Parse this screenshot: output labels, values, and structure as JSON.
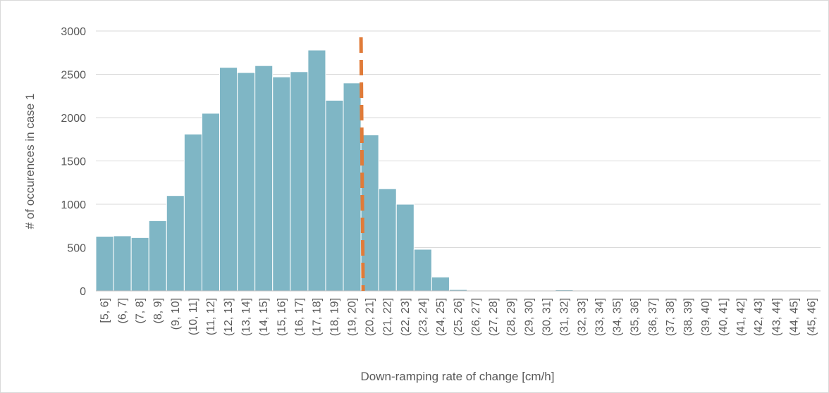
{
  "chart_data": {
    "type": "bar",
    "title": "",
    "xlabel": "Down-ramping rate of change [cm/h]",
    "ylabel": "# of occurences in case 1",
    "ylim": [
      0,
      3000
    ],
    "yticks": [
      0,
      500,
      1000,
      1500,
      2000,
      2500,
      3000
    ],
    "grid": "horizontal",
    "legend": "none",
    "categories": [
      "[5, 6]",
      "(6, 7]",
      "(7, 8]",
      "(8, 9]",
      "(9, 10]",
      "(10, 11]",
      "(11, 12]",
      "(12, 13]",
      "(13, 14]",
      "(14, 15]",
      "(15, 16]",
      "(16, 17]",
      "(17, 18]",
      "(18, 19]",
      "(19, 20]",
      "(20, 21]",
      "(21, 22]",
      "(22, 23]",
      "(23, 24]",
      "(24, 25]",
      "(25, 26]",
      "(26, 27]",
      "(27, 28]",
      "(28, 29]",
      "(29, 30]",
      "(30, 31]",
      "(31, 32]",
      "(32, 33]",
      "(33, 34]",
      "(34, 35]",
      "(35, 36]",
      "(36, 37]",
      "(37, 38]",
      "(38, 39]",
      "(39, 40]",
      "(40, 41]",
      "(41, 42]",
      "(42, 43]",
      "(43, 44]",
      "(44, 45]",
      "(45, 46]"
    ],
    "values": [
      630,
      635,
      615,
      810,
      1100,
      1810,
      2050,
      2580,
      2520,
      2600,
      2470,
      2530,
      2780,
      2200,
      2400,
      1800,
      1180,
      1000,
      480,
      160,
      15,
      4,
      3,
      3,
      3,
      3,
      12,
      3,
      2,
      2,
      2,
      2,
      2,
      2,
      2,
      2,
      2,
      2,
      2,
      2,
      2
    ],
    "threshold_line": {
      "x_boundary_after_category": "(19, 20]",
      "style": "dashed",
      "color": "#e07b39"
    },
    "colors": {
      "bar": "#7fb6c5",
      "bar_edge": "#ffffff",
      "grid": "#d9d9d9",
      "axis": "#bfbfbf",
      "text": "#595959"
    }
  }
}
